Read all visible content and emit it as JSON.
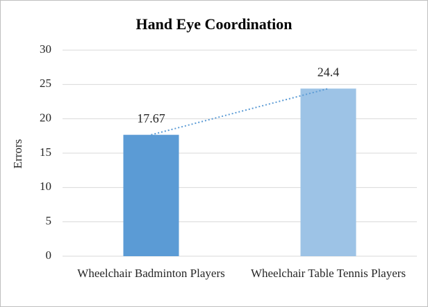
{
  "chart_data": {
    "type": "bar",
    "title": "Hand Eye Coordination",
    "y_label": "Errors",
    "categories": [
      "Wheelchair Badminton Players",
      "Wheelchair Table Tennis Players"
    ],
    "values": [
      17.67,
      24.4
    ],
    "colors": [
      "#5b9bd5",
      "#9dc3e6"
    ],
    "ylim": [
      0,
      30
    ],
    "yticks": [
      0,
      5,
      10,
      15,
      20,
      25,
      30
    ],
    "grid": true,
    "trendline": true,
    "trendline_color": "#5b9bd5"
  }
}
